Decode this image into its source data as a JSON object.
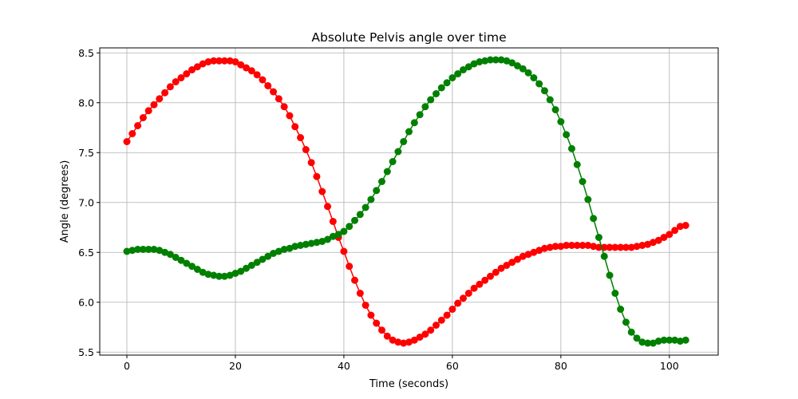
{
  "chart_data": {
    "type": "line",
    "title": "Absolute Pelvis angle over time",
    "xlabel": "Time (seconds)",
    "ylabel": "Angle (degrees)",
    "xlim": [
      -5,
      109
    ],
    "ylim": [
      5.47,
      8.55
    ],
    "xticks": [
      0,
      20,
      40,
      60,
      80,
      100
    ],
    "yticks": [
      5.5,
      6.0,
      6.5,
      7.0,
      7.5,
      8.0,
      8.5
    ],
    "grid": true,
    "markers": true,
    "series": [
      {
        "color": "#ff0000",
        "points": [
          [
            0,
            7.61
          ],
          [
            1,
            7.69
          ],
          [
            2,
            7.77
          ],
          [
            3,
            7.85
          ],
          [
            4,
            7.92
          ],
          [
            5,
            7.98
          ],
          [
            6,
            8.04
          ],
          [
            7,
            8.1
          ],
          [
            8,
            8.16
          ],
          [
            9,
            8.21
          ],
          [
            10,
            8.25
          ],
          [
            11,
            8.29
          ],
          [
            12,
            8.33
          ],
          [
            13,
            8.36
          ],
          [
            14,
            8.39
          ],
          [
            15,
            8.41
          ],
          [
            16,
            8.42
          ],
          [
            17,
            8.42
          ],
          [
            18,
            8.42
          ],
          [
            19,
            8.42
          ],
          [
            20,
            8.41
          ],
          [
            21,
            8.38
          ],
          [
            22,
            8.35
          ],
          [
            23,
            8.32
          ],
          [
            24,
            8.28
          ],
          [
            25,
            8.23
          ],
          [
            26,
            8.17
          ],
          [
            27,
            8.11
          ],
          [
            28,
            8.04
          ],
          [
            29,
            7.96
          ],
          [
            30,
            7.87
          ],
          [
            31,
            7.76
          ],
          [
            32,
            7.65
          ],
          [
            33,
            7.53
          ],
          [
            34,
            7.4
          ],
          [
            35,
            7.26
          ],
          [
            36,
            7.11
          ],
          [
            37,
            6.96
          ],
          [
            38,
            6.81
          ],
          [
            39,
            6.65
          ],
          [
            40,
            6.51
          ],
          [
            41,
            6.36
          ],
          [
            42,
            6.22
          ],
          [
            43,
            6.09
          ],
          [
            44,
            5.97
          ],
          [
            45,
            5.87
          ],
          [
            46,
            5.79
          ],
          [
            47,
            5.72
          ],
          [
            48,
            5.66
          ],
          [
            49,
            5.62
          ],
          [
            50,
            5.6
          ],
          [
            51,
            5.59
          ],
          [
            52,
            5.6
          ],
          [
            53,
            5.62
          ],
          [
            54,
            5.65
          ],
          [
            55,
            5.68
          ],
          [
            56,
            5.72
          ],
          [
            57,
            5.77
          ],
          [
            58,
            5.82
          ],
          [
            59,
            5.87
          ],
          [
            60,
            5.93
          ],
          [
            61,
            5.99
          ],
          [
            62,
            6.04
          ],
          [
            63,
            6.09
          ],
          [
            64,
            6.14
          ],
          [
            65,
            6.18
          ],
          [
            66,
            6.22
          ],
          [
            67,
            6.26
          ],
          [
            68,
            6.3
          ],
          [
            69,
            6.34
          ],
          [
            70,
            6.37
          ],
          [
            71,
            6.4
          ],
          [
            72,
            6.43
          ],
          [
            73,
            6.46
          ],
          [
            74,
            6.48
          ],
          [
            75,
            6.5
          ],
          [
            76,
            6.52
          ],
          [
            77,
            6.54
          ],
          [
            78,
            6.55
          ],
          [
            79,
            6.56
          ],
          [
            80,
            6.56
          ],
          [
            81,
            6.57
          ],
          [
            82,
            6.57
          ],
          [
            83,
            6.57
          ],
          [
            84,
            6.57
          ],
          [
            85,
            6.57
          ],
          [
            86,
            6.56
          ],
          [
            87,
            6.55
          ],
          [
            88,
            6.55
          ],
          [
            89,
            6.55
          ],
          [
            90,
            6.55
          ],
          [
            91,
            6.55
          ],
          [
            92,
            6.55
          ],
          [
            93,
            6.55
          ],
          [
            94,
            6.56
          ],
          [
            95,
            6.57
          ],
          [
            96,
            6.58
          ],
          [
            97,
            6.6
          ],
          [
            98,
            6.62
          ],
          [
            99,
            6.65
          ],
          [
            100,
            6.68
          ],
          [
            101,
            6.72
          ],
          [
            102,
            6.76
          ],
          [
            103,
            6.77
          ]
        ]
      },
      {
        "color": "#008000",
        "points": [
          [
            0,
            6.51
          ],
          [
            1,
            6.52
          ],
          [
            2,
            6.53
          ],
          [
            3,
            6.53
          ],
          [
            4,
            6.53
          ],
          [
            5,
            6.53
          ],
          [
            6,
            6.52
          ],
          [
            7,
            6.5
          ],
          [
            8,
            6.48
          ],
          [
            9,
            6.45
          ],
          [
            10,
            6.42
          ],
          [
            11,
            6.39
          ],
          [
            12,
            6.36
          ],
          [
            13,
            6.33
          ],
          [
            14,
            6.3
          ],
          [
            15,
            6.28
          ],
          [
            16,
            6.27
          ],
          [
            17,
            6.26
          ],
          [
            18,
            6.26
          ],
          [
            19,
            6.27
          ],
          [
            20,
            6.29
          ],
          [
            21,
            6.31
          ],
          [
            22,
            6.34
          ],
          [
            23,
            6.37
          ],
          [
            24,
            6.4
          ],
          [
            25,
            6.43
          ],
          [
            26,
            6.46
          ],
          [
            27,
            6.49
          ],
          [
            28,
            6.51
          ],
          [
            29,
            6.53
          ],
          [
            30,
            6.54
          ],
          [
            31,
            6.56
          ],
          [
            32,
            6.57
          ],
          [
            33,
            6.58
          ],
          [
            34,
            6.59
          ],
          [
            35,
            6.6
          ],
          [
            36,
            6.61
          ],
          [
            37,
            6.63
          ],
          [
            38,
            6.66
          ],
          [
            39,
            6.68
          ],
          [
            40,
            6.71
          ],
          [
            41,
            6.76
          ],
          [
            42,
            6.82
          ],
          [
            43,
            6.88
          ],
          [
            44,
            6.95
          ],
          [
            45,
            7.03
          ],
          [
            46,
            7.12
          ],
          [
            47,
            7.21
          ],
          [
            48,
            7.31
          ],
          [
            49,
            7.41
          ],
          [
            50,
            7.51
          ],
          [
            51,
            7.61
          ],
          [
            52,
            7.71
          ],
          [
            53,
            7.8
          ],
          [
            54,
            7.88
          ],
          [
            55,
            7.96
          ],
          [
            56,
            8.03
          ],
          [
            57,
            8.09
          ],
          [
            58,
            8.15
          ],
          [
            59,
            8.2
          ],
          [
            60,
            8.25
          ],
          [
            61,
            8.29
          ],
          [
            62,
            8.33
          ],
          [
            63,
            8.36
          ],
          [
            64,
            8.39
          ],
          [
            65,
            8.41
          ],
          [
            66,
            8.42
          ],
          [
            67,
            8.43
          ],
          [
            68,
            8.43
          ],
          [
            69,
            8.43
          ],
          [
            70,
            8.42
          ],
          [
            71,
            8.4
          ],
          [
            72,
            8.37
          ],
          [
            73,
            8.34
          ],
          [
            74,
            8.3
          ],
          [
            75,
            8.25
          ],
          [
            76,
            8.19
          ],
          [
            77,
            8.12
          ],
          [
            78,
            8.03
          ],
          [
            79,
            7.93
          ],
          [
            80,
            7.81
          ],
          [
            81,
            7.68
          ],
          [
            82,
            7.54
          ],
          [
            83,
            7.38
          ],
          [
            84,
            7.21
          ],
          [
            85,
            7.03
          ],
          [
            86,
            6.84
          ],
          [
            87,
            6.65
          ],
          [
            88,
            6.46
          ],
          [
            89,
            6.27
          ],
          [
            90,
            6.09
          ],
          [
            91,
            5.93
          ],
          [
            92,
            5.8
          ],
          [
            93,
            5.7
          ],
          [
            94,
            5.64
          ],
          [
            95,
            5.6
          ],
          [
            96,
            5.59
          ],
          [
            97,
            5.59
          ],
          [
            98,
            5.61
          ],
          [
            99,
            5.62
          ],
          [
            100,
            5.62
          ],
          [
            101,
            5.62
          ],
          [
            102,
            5.61
          ],
          [
            103,
            5.62
          ]
        ]
      }
    ]
  }
}
